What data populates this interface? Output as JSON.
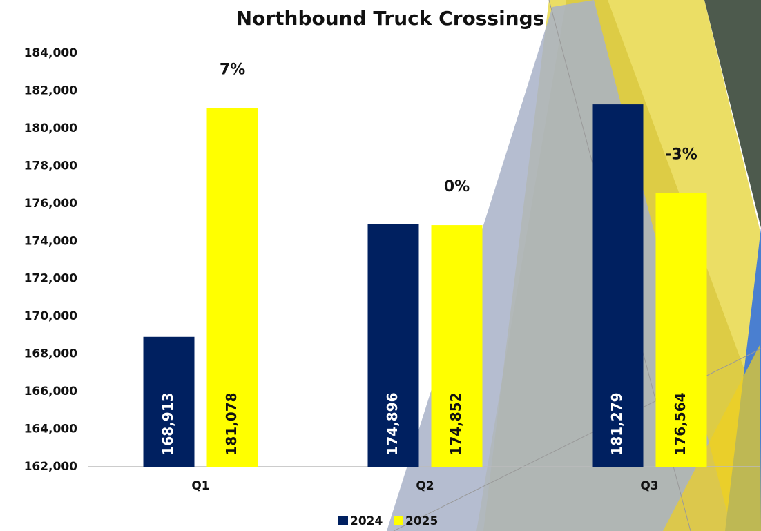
{
  "chart_data": {
    "type": "bar",
    "title": "Northbound Truck Crossings",
    "categories": [
      "Q1",
      "Q2",
      "Q3"
    ],
    "series": [
      {
        "name": "2024",
        "color": "#002060",
        "values": [
          168913,
          174896,
          181279
        ],
        "value_labels": [
          "168,913",
          "174,896",
          "181,279"
        ]
      },
      {
        "name": "2025",
        "color": "#ffff00",
        "values": [
          181078,
          174852,
          176564
        ],
        "value_labels": [
          "181,078",
          "174,852",
          "176,564"
        ]
      }
    ],
    "change_labels": [
      "7%",
      "0%",
      "-3%"
    ],
    "ylim": [
      162000,
      184000
    ],
    "yticks": [
      {
        "value": 162000,
        "label": "162,000"
      },
      {
        "value": 164000,
        "label": "164,000"
      },
      {
        "value": 166000,
        "label": "166,000"
      },
      {
        "value": 168000,
        "label": "168,000"
      },
      {
        "value": 170000,
        "label": "170,000"
      },
      {
        "value": 172000,
        "label": "172,000"
      },
      {
        "value": 174000,
        "label": "174,000"
      },
      {
        "value": 176000,
        "label": "176,000"
      },
      {
        "value": 178000,
        "label": "178,000"
      },
      {
        "value": 180000,
        "label": "180,000"
      },
      {
        "value": 182000,
        "label": "182,000"
      },
      {
        "value": 184000,
        "label": "184,000"
      }
    ],
    "grid": false,
    "legend": "bottom"
  }
}
